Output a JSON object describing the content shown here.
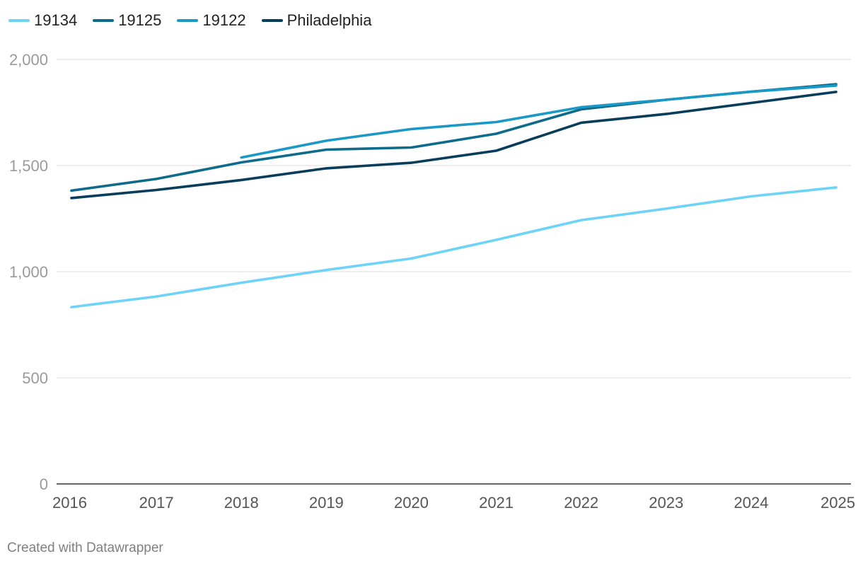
{
  "chart_data": {
    "type": "line",
    "title": "",
    "xlabel": "",
    "ylabel": "",
    "x": [
      2016,
      2017,
      2018,
      2019,
      2020,
      2021,
      2022,
      2023,
      2024,
      2025
    ],
    "x_tick_labels": [
      "2016",
      "2017",
      "2018",
      "2019",
      "2020",
      "2021",
      "2022",
      "2023",
      "2024",
      "2025"
    ],
    "ylim": [
      0,
      2000
    ],
    "y_ticks": [
      0,
      500,
      1000,
      1500,
      2000
    ],
    "y_tick_labels": [
      "0",
      "500",
      "1,000",
      "1,500",
      "2,000"
    ],
    "grid": true,
    "legend_position": "top-left",
    "series": [
      {
        "name": "19134",
        "color": "#6dd3f7",
        "values": [
          833,
          883,
          948,
          1008,
          1062,
          1150,
          1243,
          1297,
          1355,
          1397
        ]
      },
      {
        "name": "19125",
        "color": "#0e6b8c",
        "values": [
          1382,
          1437,
          1515,
          1575,
          1585,
          1650,
          1765,
          1810,
          1848,
          1883
        ]
      },
      {
        "name": "19122",
        "color": "#1b99c6",
        "values": [
          null,
          null,
          1538,
          1617,
          1672,
          1705,
          1775,
          1810,
          1848,
          1877
        ]
      },
      {
        "name": "Philadelphia",
        "color": "#083d5b",
        "values": [
          1347,
          1385,
          1432,
          1487,
          1513,
          1570,
          1702,
          1743,
          1795,
          1847
        ]
      }
    ]
  },
  "footer": {
    "credit": "Created with Datawrapper"
  }
}
